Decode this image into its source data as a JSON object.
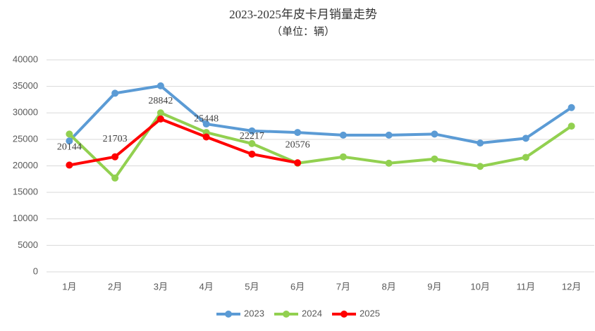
{
  "chart_data": {
    "type": "line",
    "title": "2023-2025年皮卡月销量走势",
    "subtitle": "（单位：辆）",
    "categories": [
      "1月",
      "2月",
      "3月",
      "4月",
      "5月",
      "6月",
      "7月",
      "8月",
      "9月",
      "10月",
      "11月",
      "12月"
    ],
    "series": [
      {
        "name": "2023",
        "color": "#5b9bd5",
        "values": [
          24700,
          33700,
          35100,
          27900,
          26600,
          26300,
          25800,
          25800,
          26000,
          24300,
          25200,
          31000
        ]
      },
      {
        "name": "2024",
        "color": "#92d050",
        "values": [
          26000,
          17700,
          30000,
          26300,
          24200,
          20500,
          21700,
          20500,
          21300,
          19900,
          21600,
          27500
        ]
      },
      {
        "name": "2025",
        "color": "#ff0000",
        "values": [
          20144,
          21703,
          28842,
          25448,
          22217,
          20576,
          null,
          null,
          null,
          null,
          null,
          null
        ],
        "data_labels": true
      }
    ],
    "ylim": [
      0,
      40000
    ],
    "yticks": [
      0,
      5000,
      10000,
      15000,
      20000,
      25000,
      30000,
      35000,
      40000
    ],
    "grid": true,
    "legend": "bottom"
  }
}
